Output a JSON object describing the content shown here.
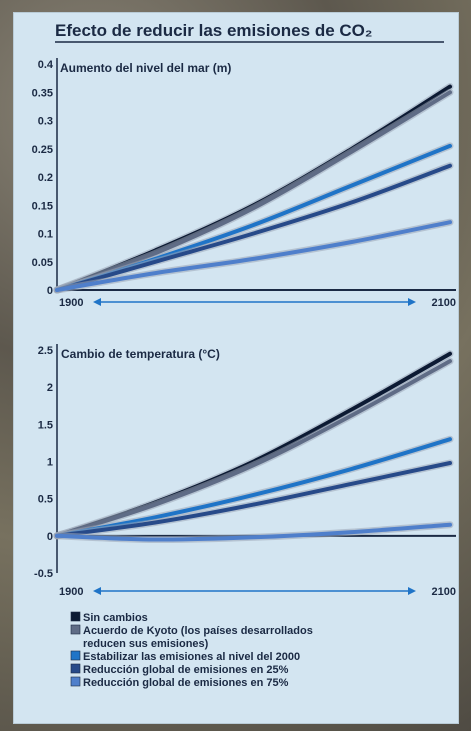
{
  "chart_data": [
    {
      "type": "line",
      "title": "Efecto de reducir las emisiones de CO₂",
      "subtitle": "Aumento del nivel del mar (m)",
      "x": [
        1900,
        1950,
        2000,
        2050,
        2100
      ],
      "x_tick_labels": [
        "1900",
        "2100"
      ],
      "y_tick_labels": [
        "0",
        "0.05",
        "0.1",
        "0.15",
        "0.2",
        "0.25",
        "0.3",
        "0.35",
        "0.4"
      ],
      "ylim": [
        0,
        0.4
      ],
      "xlim": [
        1900,
        2100
      ],
      "grid": false,
      "series": [
        {
          "name": "Sin cambios",
          "values": [
            0.0,
            0.07,
            0.15,
            0.25,
            0.36
          ],
          "color": "#0c1a33"
        },
        {
          "name": "Acuerdo de Kyoto (los países desarrollados reducen sus emisiones)",
          "values": [
            0.0,
            0.065,
            0.145,
            0.245,
            0.35
          ],
          "color": "#5f6c86"
        },
        {
          "name": "Estabilizar las emisiones al nivel del 2000",
          "values": [
            0.0,
            0.055,
            0.115,
            0.185,
            0.255
          ],
          "color": "#1f74c7"
        },
        {
          "name": "Reducción global de emisiones en 25%",
          "values": [
            0.0,
            0.05,
            0.1,
            0.155,
            0.22
          ],
          "color": "#274a89"
        },
        {
          "name": "Reducción global de emisiones en 75%",
          "values": [
            0.0,
            0.03,
            0.055,
            0.085,
            0.12
          ],
          "color": "#4f7fcb"
        }
      ]
    },
    {
      "type": "line",
      "subtitle": "Cambio de temperatura (°C)",
      "x": [
        1900,
        1950,
        2000,
        2050,
        2100
      ],
      "x_tick_labels": [
        "1900",
        "2100"
      ],
      "y_tick_labels": [
        "-0.5",
        "0",
        "0.5",
        "1",
        "1.5",
        "2",
        "2.5"
      ],
      "ylim": [
        -0.5,
        2.5
      ],
      "xlim": [
        1900,
        2100
      ],
      "grid": false,
      "series": [
        {
          "name": "Sin cambios",
          "values": [
            0.0,
            0.45,
            1.0,
            1.7,
            2.45
          ],
          "color": "#0c1a33"
        },
        {
          "name": "Acuerdo de Kyoto (los países desarrollados reducen sus emisiones)",
          "values": [
            0.0,
            0.42,
            0.95,
            1.62,
            2.35
          ],
          "color": "#5f6c86"
        },
        {
          "name": "Estabilizar las emisiones al nivel del 2000",
          "values": [
            0.0,
            0.25,
            0.55,
            0.9,
            1.3
          ],
          "color": "#1f74c7"
        },
        {
          "name": "Reducción global de emisiones en 25%",
          "values": [
            0.0,
            0.18,
            0.42,
            0.7,
            0.98
          ],
          "color": "#274a89"
        },
        {
          "name": "Reducción global de emisiones en 75%",
          "values": [
            0.0,
            -0.05,
            -0.02,
            0.05,
            0.15
          ],
          "color": "#4f7fcb"
        }
      ]
    }
  ],
  "legend": {
    "placement": "bottom",
    "items": [
      {
        "label": "Sin cambios",
        "lines": [
          "Sin cambios"
        ],
        "color": "#0c1a33"
      },
      {
        "label": "Acuerdo de Kyoto (los países desarrollados reducen sus emisiones)",
        "lines": [
          "Acuerdo de Kyoto (los países desarrollados",
          "reducen sus emisiones)"
        ],
        "color": "#5f6c86"
      },
      {
        "label": "Estabilizar las emisiones al nivel del 2000",
        "lines": [
          "Estabilizar las emisiones al nivel del 2000"
        ],
        "color": "#1f74c7"
      },
      {
        "label": "Reducción global de emisiones en 25%",
        "lines": [
          "Reducción global de emisiones en 25%"
        ],
        "color": "#274a89"
      },
      {
        "label": "Reducción global de emisiones en 75%",
        "lines": [
          "Reducción global de emisiones en 75%"
        ],
        "color": "#4f7fcb"
      }
    ]
  }
}
